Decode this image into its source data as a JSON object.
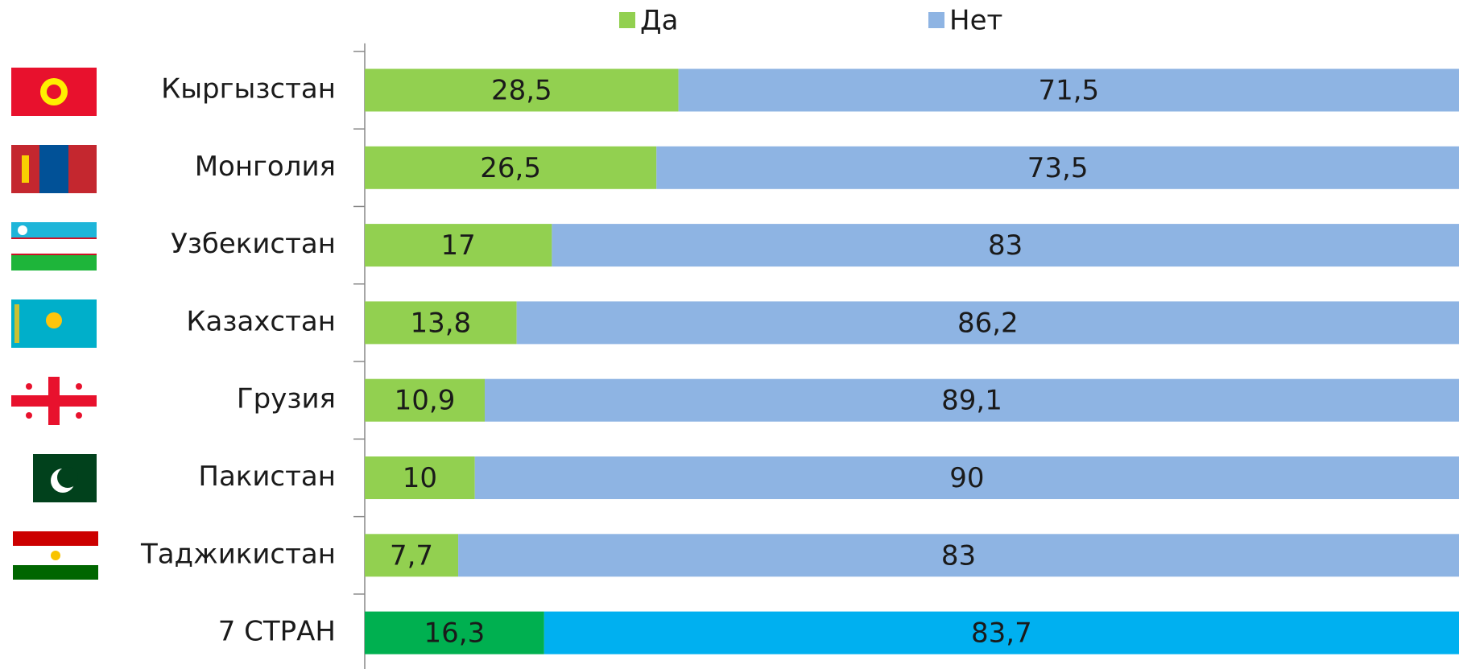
{
  "chart_data": {
    "type": "stacked_bar_percent",
    "orientation": "horizontal",
    "categories": [
      "Кыргызстан",
      "Монголия",
      "Узбекистан",
      "Казахстан",
      "Грузия",
      "Пакистан",
      "Таджикистан",
      "7 СТРАН"
    ],
    "series": [
      {
        "name": "Да",
        "color": "#92d050",
        "colors": [
          "#92d050",
          "#92d050",
          "#92d050",
          "#92d050",
          "#92d050",
          "#92d050",
          "#92d050",
          "#00b050"
        ],
        "values": [
          28.5,
          26.5,
          17,
          13.8,
          10.9,
          10,
          7.7,
          16.3
        ],
        "value_labels": [
          "28,5",
          "26,5",
          "17",
          "13,8",
          "10,9",
          "10",
          "7,7",
          "16,3"
        ]
      },
      {
        "name": "Нет",
        "color": "#8eb4e3",
        "colors": [
          "#8eb4e3",
          "#8eb4e3",
          "#8eb4e3",
          "#8eb4e3",
          "#8eb4e3",
          "#8eb4e3",
          "#8eb4e3",
          "#00b0f0"
        ],
        "values": [
          71.5,
          73.5,
          83,
          86.2,
          89.1,
          90,
          83,
          83.7
        ],
        "value_labels": [
          "71,5",
          "73,5",
          "83",
          "86,2",
          "89,1",
          "90",
          "83",
          "83,7"
        ]
      }
    ],
    "legend": "top"
  }
}
